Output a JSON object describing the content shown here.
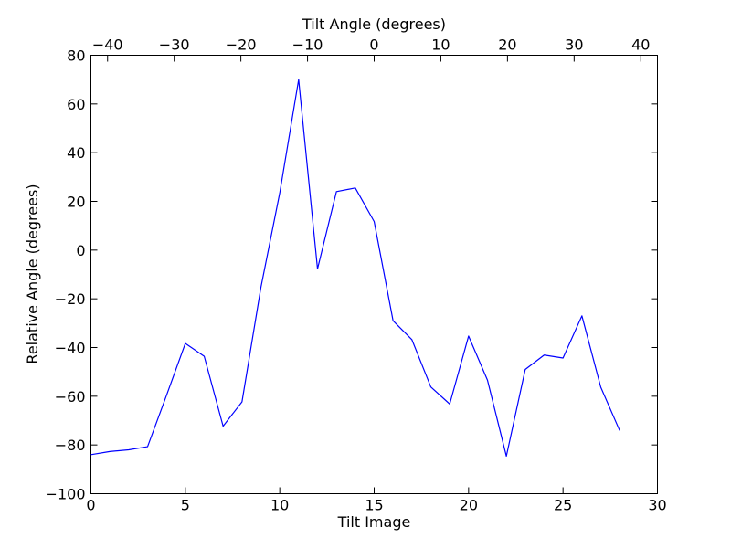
{
  "chart_data": {
    "type": "line",
    "xlabel": "Tilt Image",
    "ylabel": "Relative Angle (degrees)",
    "top_xlabel": "Tilt Angle (degrees)",
    "xlim": [
      0,
      30
    ],
    "ylim": [
      -100,
      80
    ],
    "top_xlim": [
      -42.5,
      42.5
    ],
    "grid": false,
    "x_ticks": [
      0,
      5,
      10,
      15,
      20,
      25,
      30
    ],
    "y_ticks": [
      -100,
      -80,
      -60,
      -40,
      -20,
      0,
      20,
      40,
      60,
      80
    ],
    "top_x_ticks": [
      -40,
      -30,
      -20,
      -10,
      0,
      10,
      20,
      30,
      40
    ],
    "x_tick_labels": [
      "0",
      "5",
      "10",
      "15",
      "20",
      "25",
      "30"
    ],
    "y_tick_labels": [
      "−100",
      "−80",
      "−60",
      "−40",
      "−20",
      "0",
      "20",
      "40",
      "60",
      "80"
    ],
    "top_x_tick_labels": [
      "−40",
      "−30",
      "−20",
      "−10",
      "0",
      "10",
      "20",
      "30",
      "40"
    ],
    "series": [
      {
        "color": "#0000ff",
        "x": [
          0,
          1,
          2,
          3,
          4,
          5,
          6,
          7,
          8,
          9,
          10,
          11,
          12,
          13,
          14,
          15,
          16,
          17,
          18,
          19,
          20,
          21,
          22,
          23,
          24,
          25,
          26,
          27,
          28
        ],
        "y": [
          -84,
          -82.7,
          -82,
          -80.7,
          -59.7,
          -38.3,
          -43.6,
          -72.3,
          -62.3,
          -15.4,
          23.5,
          70,
          -7.7,
          24,
          25.5,
          11.7,
          -29,
          -36.8,
          -56.2,
          -63.2,
          -35.3,
          -53.4,
          -84.6,
          -49,
          -43.1,
          -44.3,
          -27,
          -56.3,
          -74.1
        ]
      }
    ]
  }
}
